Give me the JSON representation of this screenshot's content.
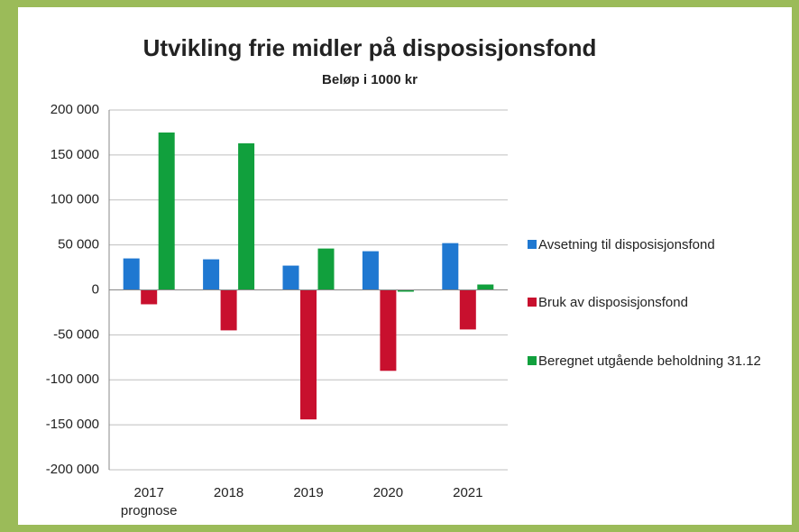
{
  "chart_data": {
    "type": "bar",
    "title": "Utvikling frie midler på disposisjonsfond",
    "subtitle": "Beløp i 1000 kr",
    "categories": [
      "2017 prognose",
      "2018",
      "2019",
      "2020",
      "2021"
    ],
    "series": [
      {
        "name": "Avsetning til disposisjonsfond",
        "color": "#1f78d1",
        "values": [
          35000,
          34000,
          27000,
          43000,
          52000
        ]
      },
      {
        "name": "Bruk av disposisjonsfond",
        "color": "#c8102e",
        "values": [
          -16000,
          -45000,
          -144000,
          -90000,
          -44000
        ]
      },
      {
        "name": "Beregnet utgående beholdning 31.12",
        "color": "#11a03d",
        "values": [
          175000,
          163000,
          46000,
          -2000,
          6000
        ]
      }
    ],
    "ylim": [
      -200000,
      200000
    ],
    "yticks": [
      {
        "value": -200000,
        "label": "-200 000"
      },
      {
        "value": -150000,
        "label": "-150 000"
      },
      {
        "value": -100000,
        "label": "-100 000"
      },
      {
        "value": -50000,
        "label": "-50 000"
      },
      0,
      {
        "value": 50000,
        "label": "50 000"
      },
      {
        "value": 100000,
        "label": "100 000"
      },
      {
        "value": 150000,
        "label": "150 000"
      },
      {
        "value": 200000,
        "label": "200 000"
      }
    ],
    "grid": true,
    "legend": "right"
  }
}
